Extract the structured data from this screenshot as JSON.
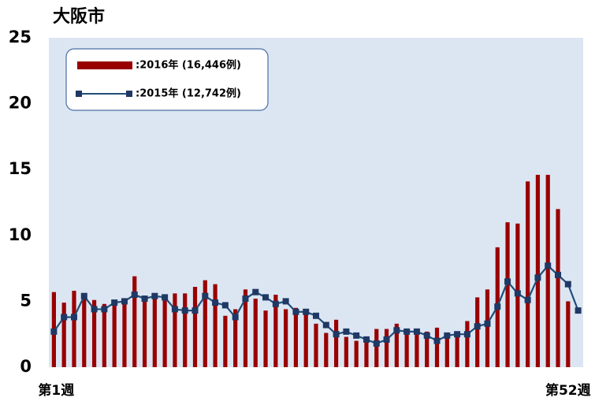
{
  "chart_data": {
    "type": "bar-line",
    "title": "大阪市",
    "categories": [
      "第1週",
      null,
      null,
      null,
      null,
      null,
      null,
      null,
      null,
      null,
      null,
      null,
      null,
      null,
      null,
      null,
      null,
      null,
      null,
      null,
      null,
      null,
      null,
      null,
      null,
      null,
      null,
      null,
      null,
      null,
      null,
      null,
      null,
      null,
      null,
      null,
      null,
      null,
      null,
      null,
      null,
      null,
      null,
      null,
      null,
      null,
      null,
      null,
      null,
      null,
      null,
      "第52週",
      null
    ],
    "series": [
      {
        "name": ":2016年 (16,446例)",
        "color": "#990000",
        "kind": "bar",
        "values": [
          5.7,
          4.9,
          5.8,
          5.6,
          5.1,
          4.8,
          5.0,
          5.1,
          6.9,
          5.3,
          5.4,
          5.2,
          5.6,
          5.6,
          6.1,
          6.6,
          6.3,
          3.9,
          4.4,
          5.9,
          5.2,
          4.3,
          5.5,
          4.4,
          4.5,
          4.1,
          3.3,
          2.6,
          3.6,
          2.3,
          2.0,
          2.3,
          2.9,
          2.9,
          3.3,
          2.7,
          2.5,
          2.7,
          3.0,
          2.6,
          2.7,
          3.5,
          5.3,
          5.9,
          9.1,
          11.0,
          10.9,
          14.1,
          14.6,
          14.6,
          12.0,
          5.0,
          null
        ]
      },
      {
        "name": ":2015年 (12,742例)",
        "color": "#1f4e79",
        "kind": "line",
        "values": [
          2.7,
          3.8,
          3.8,
          5.4,
          4.4,
          4.4,
          4.9,
          5.0,
          5.5,
          5.2,
          5.4,
          5.3,
          4.4,
          4.3,
          4.3,
          5.4,
          4.9,
          4.7,
          3.8,
          5.2,
          5.7,
          5.3,
          4.8,
          5.0,
          4.2,
          4.2,
          3.9,
          3.2,
          2.5,
          2.7,
          2.4,
          2.1,
          1.8,
          2.1,
          2.8,
          2.7,
          2.7,
          2.4,
          2.0,
          2.4,
          2.5,
          2.5,
          3.1,
          3.3,
          4.6,
          6.5,
          5.6,
          5.1,
          6.8,
          7.7,
          7.0,
          6.3,
          4.3
        ]
      }
    ],
    "ylim": [
      0,
      25
    ],
    "yticks": [
      0,
      5,
      10,
      15,
      20,
      25
    ]
  }
}
